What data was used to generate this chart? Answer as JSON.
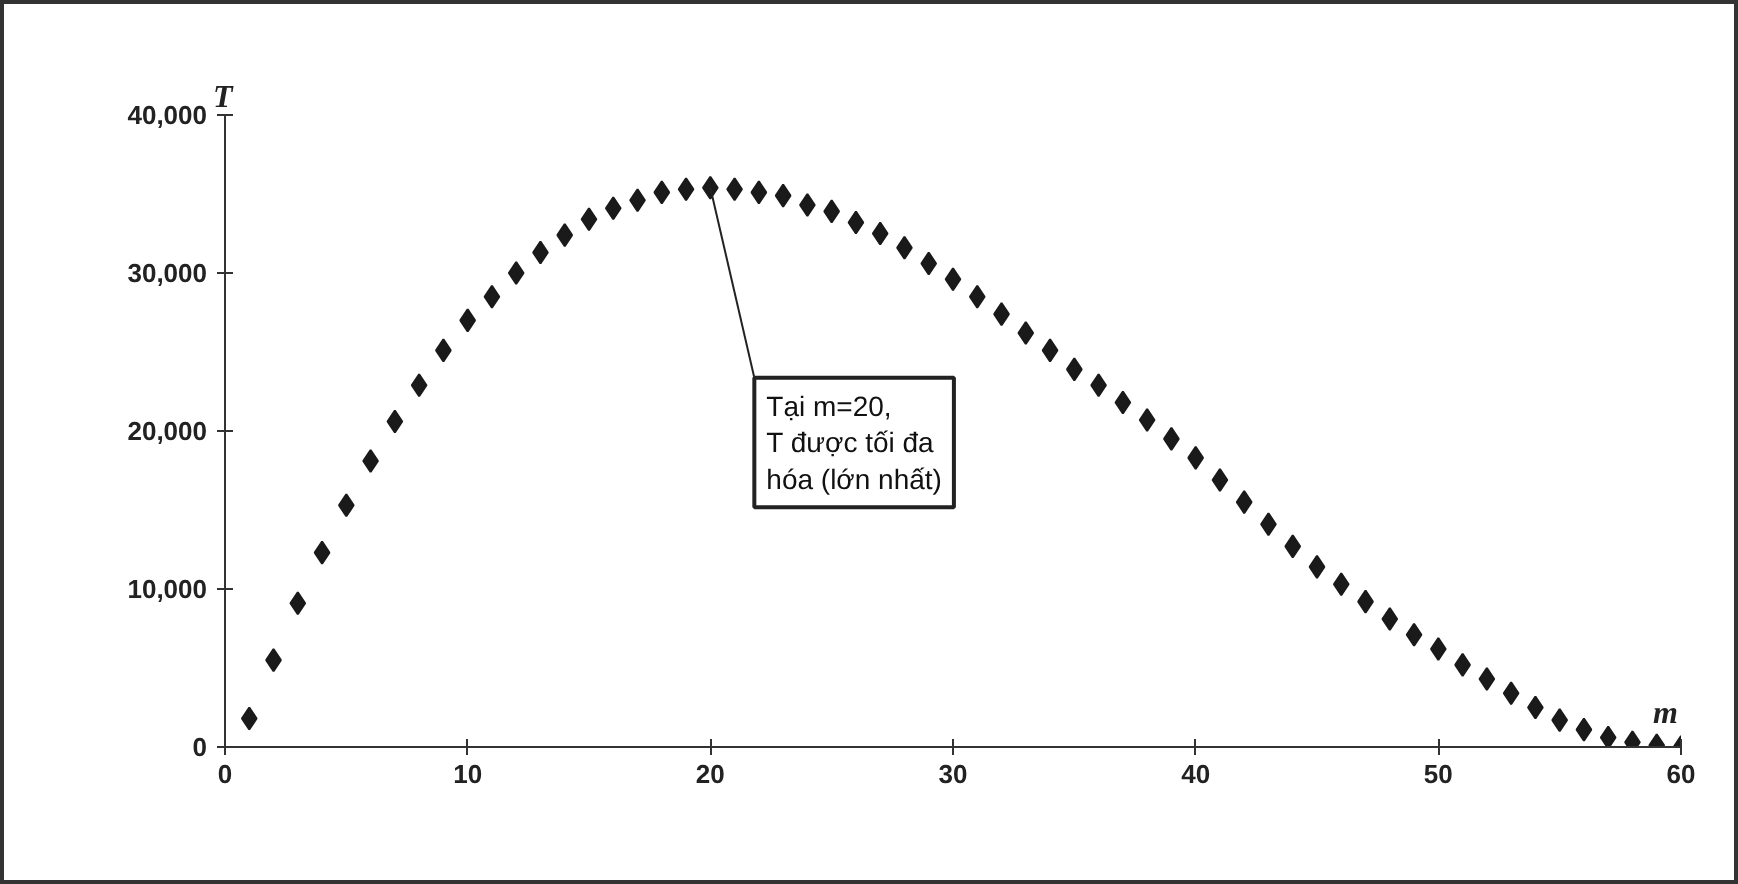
{
  "chart_data": {
    "type": "scatter",
    "xlabel": "m",
    "ylabel": "T",
    "x": [
      1,
      2,
      3,
      4,
      5,
      6,
      7,
      8,
      9,
      10,
      11,
      12,
      13,
      14,
      15,
      16,
      17,
      18,
      19,
      20,
      21,
      22,
      23,
      24,
      25,
      26,
      27,
      28,
      29,
      30,
      31,
      32,
      33,
      34,
      35,
      36,
      37,
      38,
      39,
      40,
      41,
      42,
      43,
      44,
      45,
      46,
      47,
      48,
      49,
      50,
      51,
      52,
      53,
      54,
      55,
      56,
      57,
      58,
      59,
      60
    ],
    "series": [
      {
        "color": "#1a1a1a",
        "values": [
          1800,
          5500,
          9100,
          12300,
          15300,
          18100,
          20600,
          22900,
          25100,
          27000,
          28500,
          30000,
          31300,
          32400,
          33400,
          34100,
          34600,
          35100,
          35300,
          35400,
          35300,
          35100,
          34900,
          34300,
          33900,
          33200,
          32500,
          31600,
          30600,
          29600,
          28500,
          27400,
          26200,
          25100,
          23900,
          22900,
          21800,
          20700,
          19500,
          18300,
          16900,
          15500,
          14100,
          12700,
          11400,
          10300,
          9200,
          8100,
          7100,
          6200,
          5200,
          4300,
          3400,
          2500,
          1700,
          1100,
          600,
          300,
          100,
          0
        ]
      }
    ],
    "marker": "diamond",
    "grid": false,
    "xlim": [
      0,
      60
    ],
    "xticks": [
      0,
      10,
      20,
      30,
      40,
      50,
      60
    ],
    "ylim": [
      0,
      40000
    ],
    "yticks": [
      0,
      {
        "value": 10000,
        "label": "10,000"
      },
      {
        "value": 20000,
        "label": "20,000"
      },
      {
        "value": 30000,
        "label": "30,000"
      },
      {
        "value": 40000,
        "label": "40,000"
      }
    ],
    "annotations": [
      {
        "text": "Tại m=20,\nT được tối đa\nhóa (lớn nhất)",
        "x": 20,
        "y": 35400
      }
    ]
  }
}
